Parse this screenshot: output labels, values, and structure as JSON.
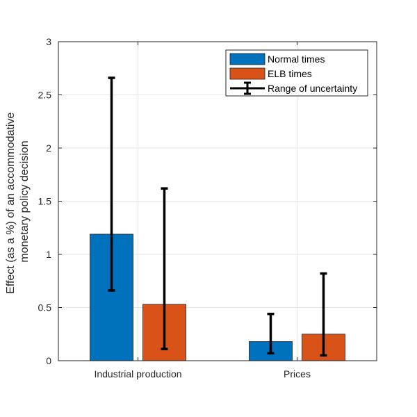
{
  "chart_data": {
    "type": "bar",
    "categories": [
      "Industrial production",
      "Prices"
    ],
    "series": [
      {
        "name": "Normal times",
        "color": "#0072BD",
        "values": [
          1.19,
          0.18
        ],
        "error_low": [
          0.66,
          0.07
        ],
        "error_high": [
          2.66,
          0.44
        ]
      },
      {
        "name": "ELB times",
        "color": "#D95319",
        "values": [
          0.53,
          0.25
        ],
        "error_low": [
          0.11,
          0.05
        ],
        "error_high": [
          1.62,
          0.82
        ]
      }
    ],
    "errorbar_label": "Range of uncertainty",
    "ylabel_lines": [
      "Effect (as a %) of an accommodative",
      "monetary policy decision"
    ],
    "xlabel": "",
    "title": "",
    "ylim": [
      0,
      3
    ],
    "yticks": [
      0,
      0.5,
      1,
      1.5,
      2,
      2.5,
      3
    ],
    "ytick_labels": [
      "0",
      "0.5",
      "1",
      "1.5",
      "2",
      "2.5",
      "3"
    ],
    "grid": true,
    "legend_location": "top-right"
  }
}
